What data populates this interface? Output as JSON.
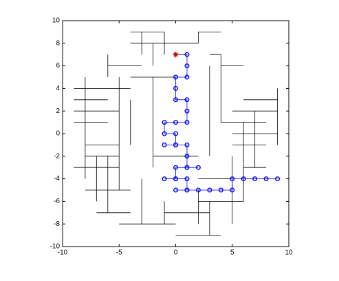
{
  "chart_data": {
    "type": "line",
    "xlim": [
      -10,
      10
    ],
    "ylim": [
      -10,
      10
    ],
    "xticks": [
      -10,
      -5,
      0,
      5,
      10
    ],
    "yticks": [
      -10,
      -8,
      -6,
      -4,
      -2,
      0,
      2,
      4,
      6,
      8,
      10
    ],
    "series": [
      {
        "color": "#000000",
        "marker": "none",
        "x": [
          -4,
          2,
          null,
          -4,
          -1,
          null,
          -3,
          -3,
          null,
          -1,
          -1,
          null,
          2,
          2,
          null,
          2,
          4,
          null,
          -9,
          -4,
          null,
          -9,
          -6,
          null,
          -9,
          -5,
          null,
          -9,
          -6,
          null,
          -8,
          -5,
          null,
          -8,
          -5,
          null,
          -9,
          -5,
          null,
          -8,
          -4,
          null,
          -7,
          -4,
          null,
          -5,
          0,
          null,
          0,
          4,
          null,
          2,
          6,
          null,
          6,
          8,
          null,
          5,
          9,
          null,
          5,
          9,
          null,
          4,
          8,
          null,
          5,
          8,
          null,
          3,
          4,
          null,
          4,
          6,
          null,
          -8,
          -8,
          null,
          -7,
          -7,
          null,
          -6,
          -6,
          null,
          -5,
          -5,
          null,
          -4,
          -4,
          null,
          -2,
          -2,
          null,
          -3,
          -3,
          null,
          -1,
          -1,
          null,
          3,
          3,
          null,
          4,
          4,
          null,
          5,
          5,
          null,
          6,
          6,
          null,
          7,
          7,
          null,
          9,
          9,
          null,
          2,
          2,
          null,
          3,
          3,
          null,
          -6,
          -6,
          null,
          -2,
          -2,
          null,
          0,
          1,
          null,
          -4,
          0,
          null,
          -2,
          2,
          null,
          2,
          5,
          null,
          -1,
          3,
          null,
          6,
          9,
          null,
          -6,
          -3
        ],
        "y": [
          8,
          8,
          null,
          9,
          9,
          null,
          9,
          7,
          null,
          9,
          7,
          null,
          8,
          9,
          null,
          9,
          9,
          null,
          4,
          4,
          null,
          3,
          3,
          null,
          2,
          2,
          null,
          1,
          1,
          null,
          -1,
          -1,
          null,
          -2,
          -2,
          null,
          -3,
          -3,
          null,
          -5,
          -5,
          null,
          -7,
          -7,
          null,
          -8,
          -8,
          null,
          -9,
          -9,
          null,
          -6,
          -6,
          null,
          -3,
          -3,
          null,
          2,
          2,
          null,
          0,
          0,
          null,
          1,
          1,
          null,
          -1,
          -1,
          null,
          7,
          7,
          null,
          6,
          6,
          null,
          5,
          -4,
          null,
          -2,
          -6,
          null,
          -2,
          -7,
          null,
          5,
          -5,
          null,
          3,
          -1,
          null,
          5,
          -3,
          null,
          -4,
          -8,
          null,
          -6,
          -8,
          null,
          6,
          -2,
          null,
          7,
          1,
          null,
          -2,
          -8,
          null,
          1,
          -6,
          null,
          2,
          -3,
          null,
          4,
          -1,
          null,
          -5,
          -8,
          null,
          -6,
          -9,
          null,
          7,
          5,
          null,
          8,
          6,
          null,
          7,
          7,
          null,
          5,
          5,
          null,
          -2,
          -2,
          null,
          -4,
          -4,
          null,
          -7,
          -7,
          null,
          3,
          3,
          null,
          6,
          6
        ]
      },
      {
        "color": "#0000ff",
        "marker": "o",
        "x": [
          1,
          1,
          1,
          0,
          0,
          0,
          1,
          1,
          1,
          0,
          -1,
          -1,
          0,
          0,
          -1,
          null,
          0,
          1,
          1,
          1,
          2,
          null,
          1,
          0,
          0,
          -1,
          null,
          0,
          1,
          1,
          null,
          0,
          1,
          2,
          3,
          4,
          5,
          5,
          6,
          7,
          8,
          9
        ],
        "y": [
          7,
          6,
          5,
          5,
          4,
          3,
          3,
          2,
          1,
          1,
          1,
          0,
          0,
          -1,
          -1,
          null,
          -1,
          -1,
          -2,
          -3,
          -3,
          null,
          -3,
          -3,
          -4,
          -4,
          null,
          -4,
          -4,
          -5,
          null,
          -5,
          -5,
          -5,
          -5,
          -5,
          -5,
          -4,
          -4,
          -4,
          -4,
          -4
        ]
      },
      {
        "color": "#cc0000",
        "marker": "*",
        "x": [
          0
        ],
        "y": [
          7
        ]
      }
    ]
  }
}
